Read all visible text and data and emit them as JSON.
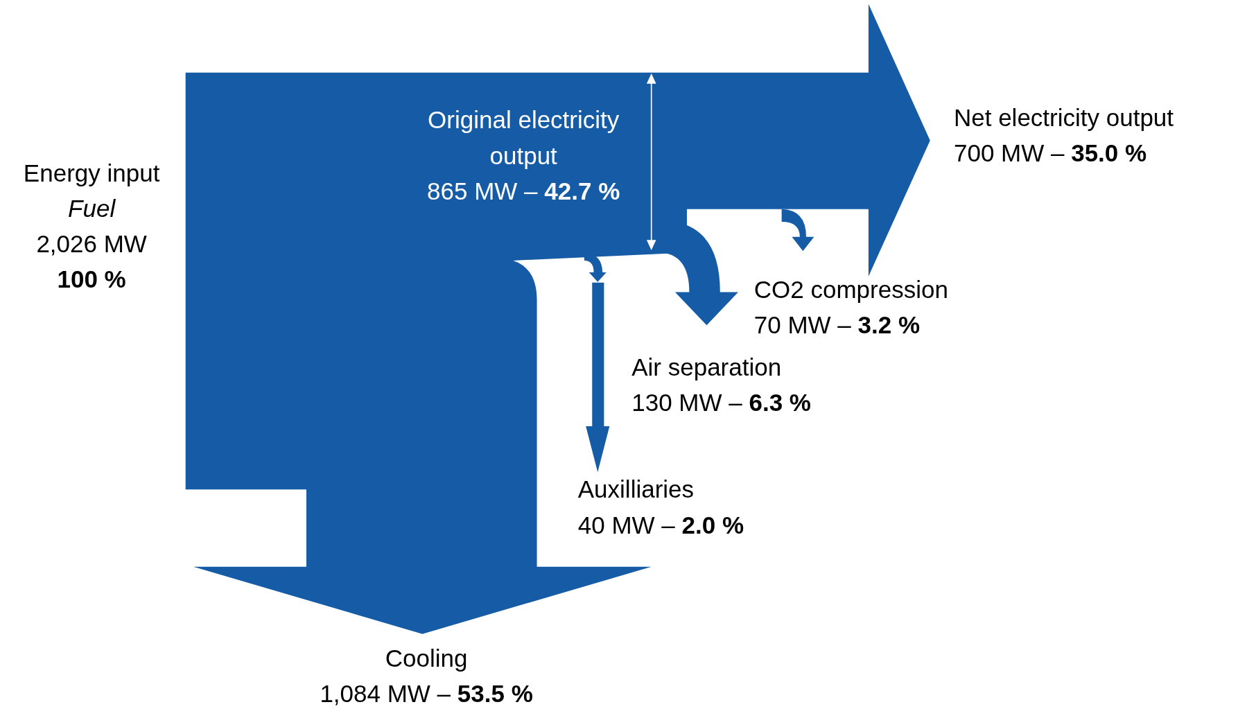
{
  "chart_data": {
    "type": "other",
    "categories": [
      "Energy input",
      "Original electricity output",
      "Net electricity output",
      "CO2 compression",
      "Air separation",
      "Auxilliaries",
      "Cooling"
    ],
    "series": [
      {
        "values": [
          2026,
          865,
          700,
          70,
          130,
          40,
          1084
        ],
        "value_labels": [
          "2,026 MW",
          "865 MW –",
          "700 MW –",
          "70 MW –",
          "130 MW –",
          "40 MW –",
          "1,084 MW –"
        ]
      },
      {
        "values": [
          100,
          42.7,
          35.0,
          3.2,
          6.3,
          2.0,
          53.5
        ],
        "value_labels": [
          "100 %",
          "42.7 %",
          "35.0 %",
          "3.2 %",
          "6.3 %",
          "2.0 %",
          "53.5 %"
        ]
      }
    ],
    "annotations": [
      "Fuel"
    ]
  }
}
